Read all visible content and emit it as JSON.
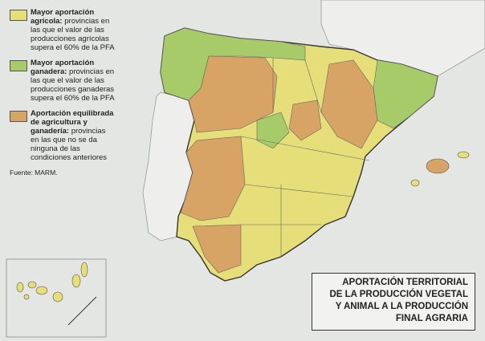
{
  "legend": [
    {
      "label": "Mayor aportación agrícola:",
      "description": "provincias en las que el valor de las producciones agrícolas supera el 60% de la PFA"
    },
    {
      "label": "Mayor aportación ganadera:",
      "description": "provincias en las que el valor de las producciones ganaderas supera el 60% de la PFA"
    },
    {
      "label": "Aportación equilibrada de agricultura y ganadería:",
      "description": "provincias en las que no se da ninguna de las condiciones anteriores"
    }
  ],
  "source": "Fuente: MARM.",
  "title": [
    "APORTACIÓN TERRITORIAL",
    "DE LA PRODUCCIÓN VEGETAL",
    "Y ANIMAL A LA PRODUCCIÓN",
    "FINAL AGRARIA"
  ]
}
